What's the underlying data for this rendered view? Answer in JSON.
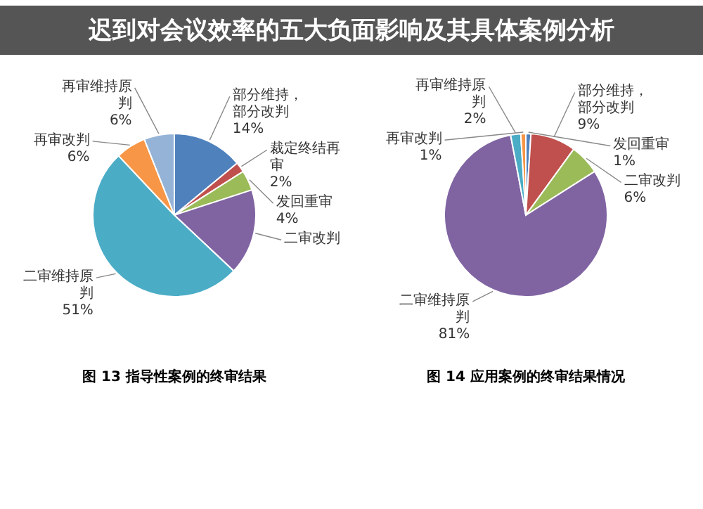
{
  "chart_data": [
    {
      "type": "pie",
      "title": "迟到对会议效率的五大负面影响及其具体案例分析",
      "annotations": [
        "图 13 指导性案例的终审结果"
      ],
      "categories": [
        "部分维持，部分改判",
        "裁定终结再审",
        "发回重审",
        "二审改判",
        "二审维持原判",
        "再审改判",
        "再审维持原判"
      ],
      "values": [
        14,
        2,
        4,
        17,
        51,
        6,
        6
      ],
      "value_labels": [
        "14%",
        "2%",
        "4%",
        null,
        "51%",
        "6%",
        "6%"
      ],
      "colors": [
        "#4f81bd",
        "#c0504d",
        "#9bbb59",
        "#8064a2",
        "#4bacc6",
        "#f79646",
        "#95b3d7"
      ]
    },
    {
      "type": "pie",
      "annotations": [
        "图 14 应用案例的终审结果情况"
      ],
      "categories": [
        "发回重审",
        "部分维持，部分改判",
        "二审改判",
        "二审维持原判",
        "再审维持原判",
        "再审改判"
      ],
      "values": [
        1,
        9,
        6,
        81,
        2,
        1
      ],
      "value_labels": [
        "1%",
        "9%",
        "6%",
        "81%",
        "2%",
        "1%"
      ],
      "colors": [
        "#4f81bd",
        "#c0504d",
        "#9bbb59",
        "#8064a2",
        "#4bacc6",
        "#f79646"
      ]
    }
  ]
}
